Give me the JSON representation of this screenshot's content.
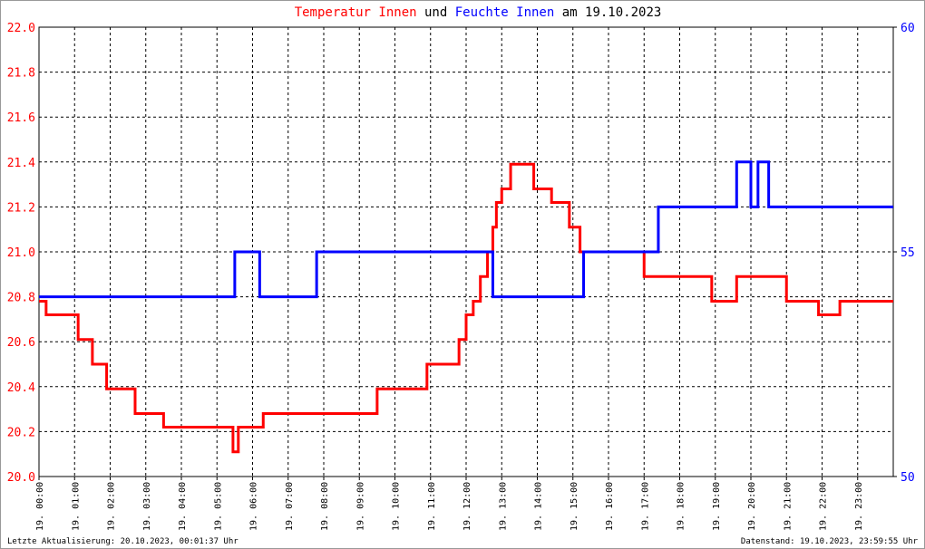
{
  "chart_data": {
    "type": "line",
    "title_parts": [
      "Temperatur Innen",
      "und",
      "Feuchte Innen",
      "am 19.10.2023"
    ],
    "footer_left": "Letzte Aktualisierung: 20.10.2023, 00:01:37 Uhr",
    "footer_right": "Datenstand: 19.10.2023, 23:59:55 Uhr",
    "xlim": [
      0,
      24
    ],
    "xticks": [
      {
        "value": 0,
        "label": "19. 00:00"
      },
      {
        "value": 1,
        "label": "19. 01:00"
      },
      {
        "value": 2,
        "label": "19. 02:00"
      },
      {
        "value": 3,
        "label": "19. 03:00"
      },
      {
        "value": 4,
        "label": "19. 04:00"
      },
      {
        "value": 5,
        "label": "19. 05:00"
      },
      {
        "value": 6,
        "label": "19. 06:00"
      },
      {
        "value": 7,
        "label": "19. 07:00"
      },
      {
        "value": 8,
        "label": "19. 08:00"
      },
      {
        "value": 9,
        "label": "19. 09:00"
      },
      {
        "value": 10,
        "label": "19. 10:00"
      },
      {
        "value": 11,
        "label": "19. 11:00"
      },
      {
        "value": 12,
        "label": "19. 12:00"
      },
      {
        "value": 13,
        "label": "19. 13:00"
      },
      {
        "value": 14,
        "label": "19. 14:00"
      },
      {
        "value": 15,
        "label": "19. 15:00"
      },
      {
        "value": 16,
        "label": "19. 16:00"
      },
      {
        "value": 17,
        "label": "19. 17:00"
      },
      {
        "value": 18,
        "label": "19. 18:00"
      },
      {
        "value": 19,
        "label": "19. 19:00"
      },
      {
        "value": 20,
        "label": "19. 20:00"
      },
      {
        "value": 21,
        "label": "19. 21:00"
      },
      {
        "value": 22,
        "label": "19. 22:00"
      },
      {
        "value": 23,
        "label": "19. 23:00"
      }
    ],
    "ylim": [
      20,
      22
    ],
    "yticks": [
      {
        "value": 20,
        "label": "20.0"
      },
      20.2,
      20.4,
      20.6,
      20.8,
      {
        "value": 21,
        "label": "21.0"
      },
      21.2,
      21.4,
      21.6,
      21.8,
      {
        "value": 22,
        "label": "22.0"
      }
    ],
    "y2lim": [
      50,
      60
    ],
    "y2ticks": [
      50,
      55,
      60
    ],
    "grid": true,
    "series": [
      {
        "name": "Temperatur Innen",
        "color": "#ff0000",
        "x": [
          0,
          0.2,
          0.2,
          1.1,
          1.1,
          1.5,
          1.5,
          1.9,
          1.9,
          2.7,
          2.7,
          3.5,
          3.5,
          5.45,
          5.45,
          5.6,
          5.6,
          6.3,
          6.3,
          9.5,
          9.5,
          10.9,
          10.9,
          11.8,
          11.8,
          12.0,
          12.0,
          12.2,
          12.2,
          12.4,
          12.4,
          12.6,
          12.6,
          12.75,
          12.75,
          12.85,
          12.85,
          13.0,
          13.0,
          13.25,
          13.25,
          13.9,
          13.9,
          14.4,
          14.4,
          14.9,
          14.9,
          15.2,
          15.2,
          17.0,
          17.0,
          18.9,
          18.9,
          19.6,
          19.6,
          21.0,
          21.0,
          21.9,
          21.9,
          22.5,
          22.5,
          24
        ],
        "values": [
          20.78,
          20.78,
          20.72,
          20.72,
          20.61,
          20.61,
          20.5,
          20.5,
          20.39,
          20.39,
          20.28,
          20.28,
          20.22,
          20.22,
          20.11,
          20.11,
          20.22,
          20.22,
          20.28,
          20.28,
          20.39,
          20.39,
          20.5,
          20.5,
          20.61,
          20.61,
          20.72,
          20.72,
          20.78,
          20.78,
          20.89,
          20.89,
          21.0,
          21.0,
          21.11,
          21.11,
          21.22,
          21.22,
          21.28,
          21.28,
          21.39,
          21.39,
          21.28,
          21.28,
          21.22,
          21.22,
          21.11,
          21.11,
          21.0,
          21.0,
          20.89,
          20.89,
          20.78,
          20.78,
          20.89,
          20.89,
          20.78,
          20.78,
          20.72,
          20.72,
          20.78,
          20.78
        ]
      },
      {
        "name": "Feuchte Innen",
        "color": "#0000ff",
        "axis": "y2",
        "x": [
          0,
          5.5,
          5.5,
          6.2,
          6.2,
          7.8,
          7.8,
          12.75,
          12.75,
          15.3,
          15.3,
          17.4,
          17.4,
          19.6,
          19.6,
          20.0,
          20.0,
          20.2,
          20.2,
          20.5,
          20.5,
          24
        ],
        "values": [
          54,
          54,
          55,
          55,
          54,
          54,
          55,
          55,
          54,
          54,
          55,
          55,
          56,
          56,
          57,
          57,
          56,
          56,
          57,
          57,
          56,
          56
        ]
      }
    ]
  }
}
